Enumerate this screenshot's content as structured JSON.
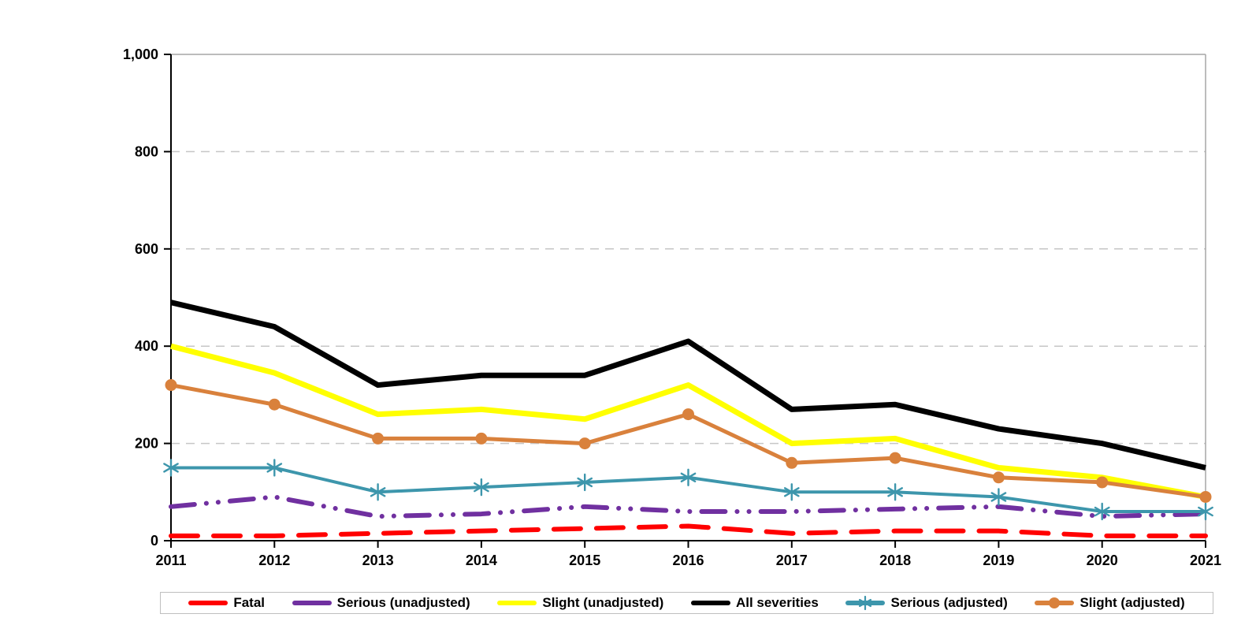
{
  "chart_data": {
    "type": "line",
    "x": [
      "2011",
      "2012",
      "2013",
      "2014",
      "2015",
      "2016",
      "2017",
      "2018",
      "2019",
      "2020",
      "2021"
    ],
    "series": [
      {
        "name": "Fatal",
        "color": "#ff0000",
        "style": "dashed",
        "marker": "none",
        "width": 6,
        "values": [
          10,
          10,
          15,
          20,
          25,
          30,
          15,
          20,
          20,
          10,
          10
        ]
      },
      {
        "name": "Serious (unadjusted)",
        "color": "#7030a0",
        "style": "dash-dot-dot",
        "marker": "none",
        "width": 6,
        "values": [
          70,
          90,
          50,
          55,
          70,
          60,
          60,
          65,
          70,
          50,
          55
        ]
      },
      {
        "name": "Slight (unadjusted)",
        "color": "#ffff00",
        "style": "solid",
        "marker": "none",
        "width": 7,
        "values": [
          400,
          345,
          260,
          270,
          250,
          320,
          200,
          210,
          150,
          130,
          90
        ]
      },
      {
        "name": "All severities",
        "color": "#000000",
        "style": "solid",
        "marker": "none",
        "width": 7,
        "values": [
          490,
          440,
          320,
          340,
          340,
          410,
          270,
          280,
          230,
          200,
          150
        ]
      },
      {
        "name": "Serious (adjusted)",
        "color": "#3d96ac",
        "style": "solid",
        "marker": "asterisk",
        "width": 4,
        "values": [
          150,
          150,
          100,
          110,
          120,
          130,
          100,
          100,
          90,
          60,
          60
        ]
      },
      {
        "name": "Slight (adjusted)",
        "color": "#d9813c",
        "style": "solid",
        "marker": "circle",
        "width": 5,
        "values": [
          320,
          280,
          210,
          210,
          200,
          260,
          160,
          170,
          130,
          120,
          90
        ]
      }
    ],
    "title": "",
    "xlabel": "",
    "ylabel": "",
    "ylim": [
      0,
      1000
    ],
    "yticks": [
      0,
      200,
      400,
      600,
      800,
      1000
    ],
    "ytick_labels": [
      "0",
      "200",
      "400",
      "600",
      "800",
      "1,000"
    ],
    "grid": "horizontal dashed gridlines at 200/400/600/800, solid top border at 1,000, solid right border",
    "legend_position": "bottom-boxed",
    "colors": {
      "gridline": "#c6c6c6",
      "plot_border": "#a6a6a6",
      "axis": "#000000",
      "legend_border": "#bfbfbf"
    }
  }
}
